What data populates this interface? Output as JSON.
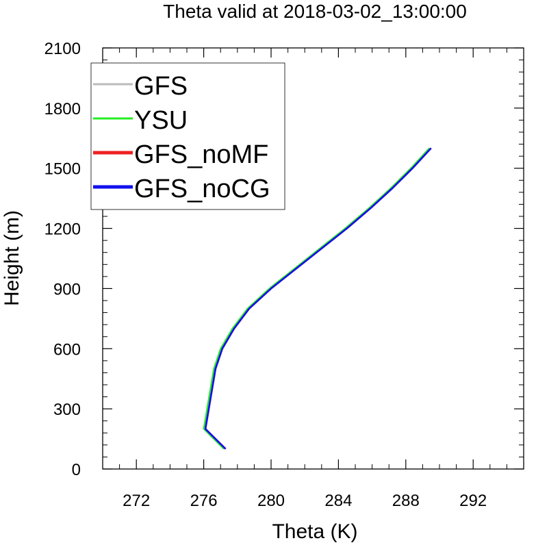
{
  "chart_data": {
    "type": "line",
    "title": "Theta valid at 2018-03-02_13:00:00",
    "xlabel": "Theta (K)",
    "ylabel": "Height (m)",
    "xlim": [
      270,
      295
    ],
    "ylim": [
      0,
      2100
    ],
    "xticks": [
      272,
      276,
      280,
      284,
      288,
      292
    ],
    "yticks": [
      0,
      300,
      600,
      900,
      1200,
      1500,
      1800,
      2100
    ],
    "xtick_labels": [
      "272",
      "276",
      "280",
      "284",
      "288",
      "292"
    ],
    "ytick_labels": [
      "0",
      "300",
      "600",
      "900",
      "1200",
      "1500",
      "1800",
      "2100"
    ],
    "grid": false,
    "legend_position": "top-left",
    "series": [
      {
        "name": "GFS",
        "color": "#bbbbbb",
        "x": [
          277.3,
          276.1,
          276.3,
          276.5,
          276.7,
          277.1,
          277.8,
          278.7,
          280.0,
          281.5,
          283.0,
          284.5,
          285.9,
          287.2,
          288.4,
          289.5
        ],
        "y": [
          100,
          200,
          300,
          400,
          500,
          600,
          700,
          800,
          900,
          1000,
          1100,
          1200,
          1300,
          1400,
          1500,
          1600
        ]
      },
      {
        "name": "YSU",
        "color": "#22ee22",
        "x": [
          277.2,
          276.0,
          276.2,
          276.4,
          276.6,
          277.0,
          277.7,
          278.6,
          279.9,
          281.4,
          282.9,
          284.4,
          285.8,
          287.1,
          288.3,
          289.4
        ],
        "y": [
          100,
          200,
          300,
          400,
          500,
          600,
          700,
          800,
          900,
          1000,
          1100,
          1200,
          1300,
          1400,
          1500,
          1600
        ]
      },
      {
        "name": "GFS_noMF",
        "color": "#ee2222",
        "x": [
          277.3,
          276.1,
          276.3,
          276.5,
          276.7,
          277.1,
          277.8,
          278.7,
          280.0,
          281.5,
          283.0,
          284.5,
          285.9,
          287.2,
          288.4,
          289.5
        ],
        "y": [
          100,
          200,
          300,
          400,
          500,
          600,
          700,
          800,
          900,
          1000,
          1100,
          1200,
          1300,
          1400,
          1500,
          1600
        ]
      },
      {
        "name": "GFS_noCG",
        "color": "#1111ee",
        "x": [
          277.3,
          276.1,
          276.3,
          276.5,
          276.7,
          277.1,
          277.8,
          278.7,
          280.0,
          281.5,
          283.0,
          284.5,
          285.9,
          287.2,
          288.4,
          289.5
        ],
        "y": [
          100,
          200,
          300,
          400,
          500,
          600,
          700,
          800,
          900,
          1000,
          1100,
          1200,
          1300,
          1400,
          1500,
          1600
        ]
      }
    ]
  }
}
